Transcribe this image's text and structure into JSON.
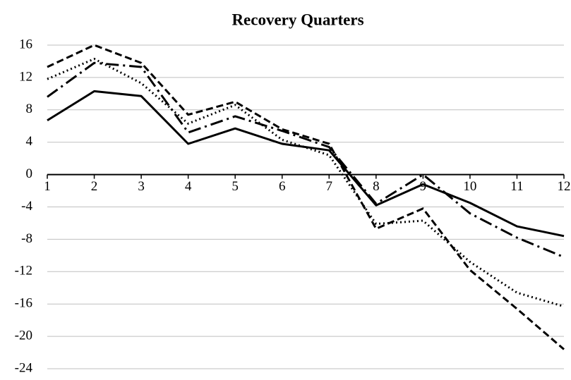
{
  "chart_data": {
    "type": "line",
    "title": "Recovery Quarters",
    "x": [
      1,
      2,
      3,
      4,
      5,
      6,
      7,
      8,
      9,
      10,
      11,
      12
    ],
    "xlim": [
      1,
      12
    ],
    "xticks": [
      1,
      2,
      3,
      4,
      5,
      6,
      7,
      8,
      9,
      10,
      11,
      12
    ],
    "ylim": [
      -24,
      16
    ],
    "yticks": [
      -24,
      -20,
      -16,
      -12,
      -8,
      -4,
      0,
      4,
      8,
      12,
      16
    ],
    "grid": true,
    "series": [
      {
        "color": "#000000",
        "dash": "solid",
        "values": [
          6.7,
          10.3,
          9.7,
          3.8,
          5.7,
          3.8,
          3.0,
          -3.8,
          -1.2,
          -3.5,
          -6.4,
          -7.6
        ]
      },
      {
        "color": "#000000",
        "dash": "dashed",
        "values": [
          13.3,
          16.0,
          13.8,
          7.4,
          9.0,
          5.6,
          3.8,
          -6.7,
          -4.2,
          -11.8,
          -16.6,
          -21.6
        ]
      },
      {
        "color": "#000000",
        "dash": "dotted",
        "values": [
          11.8,
          14.3,
          11.3,
          6.3,
          8.6,
          4.3,
          2.4,
          -6.1,
          -5.7,
          -10.8,
          -14.6,
          -16.3
        ]
      },
      {
        "color": "#000000",
        "dash": "dashdot",
        "values": [
          9.6,
          13.8,
          13.3,
          5.2,
          7.2,
          5.4,
          3.4,
          -3.6,
          0.0,
          -4.8,
          -7.8,
          -10.2
        ]
      }
    ]
  }
}
